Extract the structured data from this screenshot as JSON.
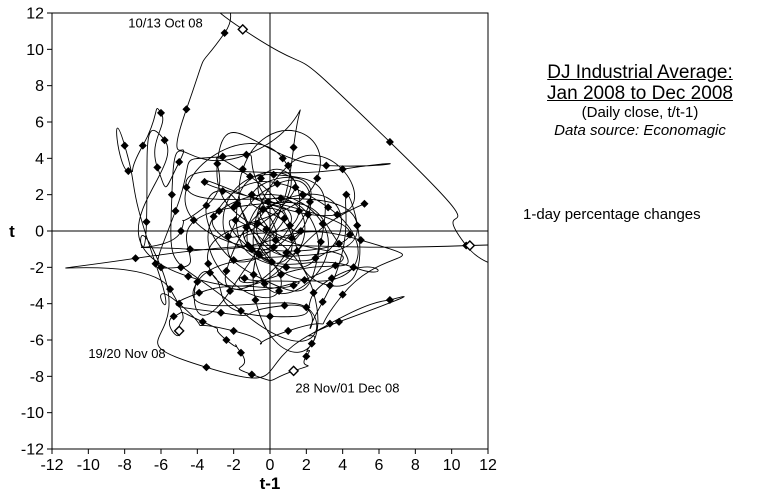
{
  "chart_data": {
    "type": "scatter",
    "title_lines": [
      "DJ Industrial Average:",
      "Jan 2008 to Dec 2008"
    ],
    "subtitle": "(Daily close, t/t-1)",
    "source": "Data source: Economagic",
    "note": "1-day percentage changes",
    "xlabel": "t-1",
    "ylabel": "t",
    "xlim": [
      -12,
      12
    ],
    "ylim": [
      -12,
      12
    ],
    "x_ticks": [
      -12,
      -10,
      -8,
      -6,
      -4,
      -2,
      0,
      2,
      4,
      6,
      8,
      10,
      12
    ],
    "y_ticks": [
      12,
      10,
      8,
      6,
      4,
      2,
      0,
      -2,
      -4,
      -6,
      -8,
      -10,
      -12
    ],
    "grid": false,
    "connected_by_smooth_lines": true,
    "points": [
      [
        0.3,
        -0.5
      ],
      [
        -0.4,
        1.2
      ],
      [
        1.1,
        0.3
      ],
      [
        -1.2,
        -0.8
      ],
      [
        0.6,
        1.8
      ],
      [
        1.5,
        -1.1
      ],
      [
        -0.7,
        0.4
      ],
      [
        2.1,
        0.9
      ],
      [
        0.9,
        -2.0
      ],
      [
        -1.8,
        1.5
      ],
      [
        1.4,
        2.4
      ],
      [
        -2.3,
        -0.3
      ],
      [
        0.2,
        3.1
      ],
      [
        2.8,
        -0.6
      ],
      [
        -0.9,
        -2.4
      ],
      [
        -2.6,
        2.2
      ],
      [
        1.9,
        -2.7
      ],
      [
        3.2,
        1.3
      ],
      [
        -3.1,
        0.8
      ],
      [
        0.5,
        -3.3
      ],
      [
        -1.5,
        3.4
      ],
      [
        2.6,
        2.9
      ],
      [
        -3.4,
        -1.8
      ],
      [
        3.6,
        -1.9
      ],
      [
        -0.2,
        0.1
      ],
      [
        0.8,
        0.7
      ],
      [
        -0.6,
        -1.3
      ],
      [
        1.2,
        -0.4
      ],
      [
        -1.0,
        2.0
      ],
      [
        2.2,
        1.6
      ],
      [
        -2.0,
        -1.6
      ],
      [
        0.4,
        2.6
      ],
      [
        1.7,
        0.0
      ],
      [
        -1.3,
        0.2
      ],
      [
        0.1,
        -1.7
      ],
      [
        -2.8,
        1.1
      ],
      [
        2.9,
        0.4
      ],
      [
        -0.3,
        -2.9
      ],
      [
        1.0,
        3.6
      ],
      [
        3.7,
        0.9
      ],
      [
        -3.6,
        2.7
      ],
      [
        4.4,
        -0.2
      ],
      [
        -4.2,
        0.6
      ],
      [
        0.7,
        4.0
      ],
      [
        -0.8,
        -3.8
      ],
      [
        2.4,
        -3.4
      ],
      [
        -2.9,
        3.7
      ],
      [
        3.1,
        3.6
      ],
      [
        4.0,
        3.4
      ],
      [
        -4.6,
        2.4
      ],
      [
        4.8,
        0.3
      ],
      [
        -4.0,
        -2.8
      ],
      [
        2.0,
        -4.2
      ],
      [
        -1.6,
        -4.4
      ],
      [
        -5.4,
        2.0
      ],
      [
        -1.3,
        4.2
      ],
      [
        1.3,
        4.6
      ],
      [
        -2.2,
        -3.3
      ],
      [
        -3.3,
        -2.3
      ],
      [
        0.0,
        -4.7
      ],
      [
        3.4,
        -2.6
      ],
      [
        4.6,
        -2.0
      ],
      [
        -1.0,
        -1.0
      ],
      [
        1.6,
        1.1
      ],
      [
        -0.5,
        2.9
      ],
      [
        0.2,
        -0.9
      ],
      [
        -1.9,
        0.6
      ],
      [
        2.5,
        -1.5
      ],
      [
        1.8,
        2.0
      ],
      [
        -2.4,
        -2.2
      ],
      [
        0.9,
        -1.2
      ],
      [
        -0.1,
        1.6
      ],
      [
        -2.6,
        4.1
      ],
      [
        -5.2,
        1.1
      ],
      [
        -4.9,
        -2.0
      ],
      [
        -2.0,
        1.3
      ],
      [
        3.8,
        -0.7
      ],
      [
        0.6,
        -2.4
      ],
      [
        -1.4,
        -2.6
      ],
      [
        1.3,
        -3.0
      ],
      [
        -3.9,
        -3.4
      ],
      [
        -2.7,
        -4.5
      ],
      [
        0.8,
        -4.1
      ],
      [
        2.9,
        -3.9
      ],
      [
        4.2,
        2.0
      ],
      [
        3.3,
        -3.0
      ],
      [
        -1.1,
        3.0
      ],
      [
        -3.5,
        1.4
      ],
      [
        -4.9,
        0.0
      ],
      [
        -4.4,
        -1.0
      ],
      [
        5.0,
        -0.5
      ],
      [
        4.0,
        -3.5
      ],
      [
        1.0,
        -5.5
      ],
      [
        -2.0,
        -5.5
      ],
      [
        -5.0,
        -4.0
      ],
      [
        -6.3,
        -1.8
      ],
      [
        -8.0,
        4.7
      ],
      [
        -7.8,
        3.3
      ],
      [
        -7.0,
        4.7
      ],
      [
        -6.0,
        6.5
      ],
      [
        -6.2,
        3.5
      ],
      [
        -5.0,
        3.8
      ],
      [
        -4.6,
        6.7
      ],
      [
        -2.5,
        10.9
      ],
      [
        -1.5,
        11.1
      ],
      [
        6.6,
        4.9
      ],
      [
        10.8,
        -0.8
      ],
      [
        11.0,
        -0.8
      ],
      [
        -7.4,
        -1.5
      ],
      [
        -5.5,
        -3.2
      ],
      [
        -5.0,
        -5.5
      ],
      [
        -5.3,
        -4.7
      ],
      [
        -3.7,
        -5.0
      ],
      [
        -2.4,
        -6.0
      ],
      [
        -1.6,
        -6.7
      ],
      [
        -1.0,
        -7.9
      ],
      [
        1.3,
        -7.7
      ],
      [
        2.0,
        -6.9
      ],
      [
        2.3,
        -6.2
      ],
      [
        3.3,
        -5.1
      ],
      [
        6.6,
        -3.8
      ],
      [
        3.8,
        -5.0
      ],
      [
        -3.5,
        -7.5
      ],
      [
        -6.0,
        -2.0
      ],
      [
        -6.8,
        0.5
      ],
      [
        -5.8,
        5.0
      ],
      [
        -4.5,
        -2.5
      ],
      [
        5.2,
        1.5
      ]
    ],
    "open_markers": [
      [
        -1.5,
        11.1
      ],
      [
        11.0,
        -0.8
      ],
      [
        -5.0,
        -5.5
      ],
      [
        1.3,
        -7.7
      ]
    ],
    "annotations": [
      {
        "text": "10/13 Oct 08"
      },
      {
        "text": "19/20 Nov 08"
      },
      {
        "text": "28 Nov/01 Dec 08"
      }
    ],
    "side_label_y": "t"
  }
}
